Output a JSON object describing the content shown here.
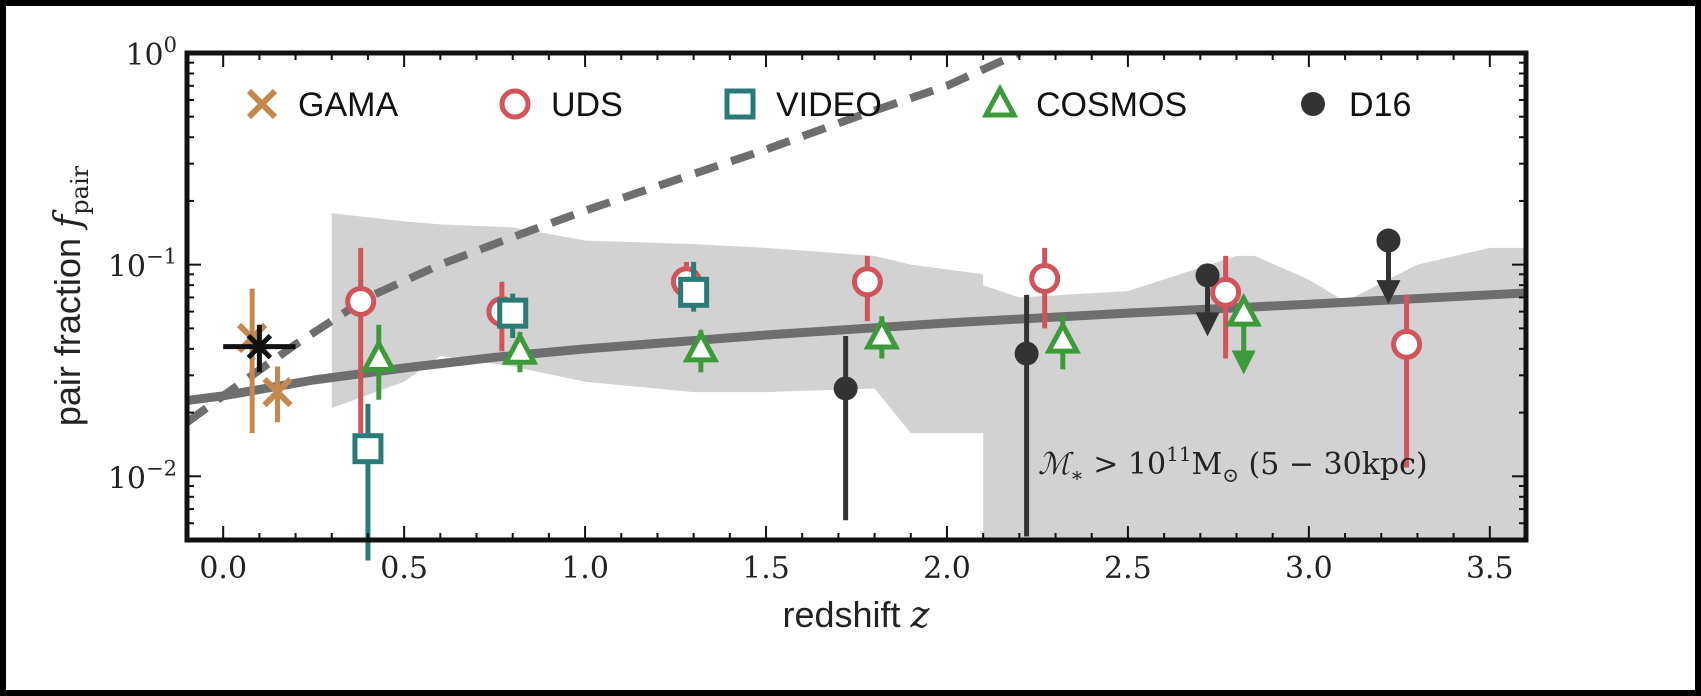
{
  "chart_data": {
    "type": "scatter",
    "title": "",
    "xlabel": "redshift",
    "xlabel_symbol": "z",
    "ylabel": "pair fraction",
    "ylabel_symbol": "f",
    "ylabel_subscript": "pair",
    "yscale": "log",
    "xlim": [
      -0.1,
      3.6
    ],
    "ylim": [
      0.005,
      1.0
    ],
    "grid": false,
    "legend_position": "top, single row",
    "x_ticks": [
      {
        "value": 0.0,
        "label": "0.0"
      },
      {
        "value": 0.5,
        "label": "0.5"
      },
      {
        "value": 1.0,
        "label": "1.0"
      },
      {
        "value": 1.5,
        "label": "1.5"
      },
      {
        "value": 2.0,
        "label": "2.0"
      },
      {
        "value": 2.5,
        "label": "2.5"
      },
      {
        "value": 3.0,
        "label": "3.0"
      },
      {
        "value": 3.5,
        "label": "3.5"
      }
    ],
    "y_ticks": [
      {
        "value": 1.0,
        "base": "10",
        "exp": "0"
      },
      {
        "value": 0.1,
        "base": "10",
        "exp": "−1"
      },
      {
        "value": 0.01,
        "base": "10",
        "exp": "−2"
      }
    ],
    "annotation": {
      "prefix": "ℳ",
      "sub": "∗",
      "middle": " > 10",
      "sup": "11",
      "unit": "M",
      "unit_sub": "⊙",
      "suffix": " (5 − 30kpc)"
    },
    "series": [
      {
        "name": "GAMA",
        "marker": "x",
        "color": "#c4884f",
        "points": [
          {
            "x": 0.08,
            "y": 0.045,
            "ylo": 0.016,
            "yhi": 0.077
          },
          {
            "x": 0.15,
            "y": 0.025,
            "ylo": 0.018,
            "yhi": 0.033
          }
        ]
      },
      {
        "name": "UDS",
        "marker": "circle-open",
        "color": "#d0545a",
        "points": [
          {
            "x": 0.38,
            "y": 0.067,
            "ylo": 0.016,
            "yhi": 0.12
          },
          {
            "x": 0.77,
            "y": 0.06,
            "ylo": 0.039,
            "yhi": 0.083
          },
          {
            "x": 1.28,
            "y": 0.083,
            "ylo": 0.066,
            "yhi": 0.103
          },
          {
            "x": 1.78,
            "y": 0.083,
            "ylo": 0.054,
            "yhi": 0.11
          },
          {
            "x": 2.27,
            "y": 0.086,
            "ylo": 0.05,
            "yhi": 0.12
          },
          {
            "x": 2.77,
            "y": 0.074,
            "ylo": 0.036,
            "yhi": 0.11
          },
          {
            "x": 3.27,
            "y": 0.042,
            "ylo": 0.011,
            "yhi": 0.072
          }
        ]
      },
      {
        "name": "VIDEO",
        "marker": "square-open",
        "color": "#2a7a78",
        "points": [
          {
            "x": 0.4,
            "y": 0.0135,
            "ylo": 0.004,
            "yhi": 0.022
          },
          {
            "x": 0.8,
            "y": 0.059,
            "ylo": 0.045,
            "yhi": 0.073
          },
          {
            "x": 1.3,
            "y": 0.074,
            "ylo": 0.06,
            "yhi": 0.103
          }
        ]
      },
      {
        "name": "COSMOS",
        "marker": "triangle-open",
        "color": "#3d9a3a",
        "points": [
          {
            "x": 0.43,
            "y": 0.036,
            "ylo": 0.023,
            "yhi": 0.052
          },
          {
            "x": 0.82,
            "y": 0.039,
            "ylo": 0.031,
            "yhi": 0.048
          },
          {
            "x": 1.32,
            "y": 0.04,
            "ylo": 0.031,
            "yhi": 0.049
          },
          {
            "x": 1.82,
            "y": 0.046,
            "ylo": 0.036,
            "yhi": 0.057
          },
          {
            "x": 2.32,
            "y": 0.044,
            "ylo": 0.032,
            "yhi": 0.057
          },
          {
            "x": 2.82,
            "y": 0.059,
            "upper_limit": true,
            "arrow_to": 0.033
          }
        ]
      },
      {
        "name": "D16",
        "marker": "circle-filled",
        "color": "#333333",
        "points": [
          {
            "x": 1.72,
            "y": 0.026,
            "ylo": 0.0062,
            "yhi": 0.046
          },
          {
            "x": 2.22,
            "y": 0.038,
            "ylo": 0.0052,
            "yhi": 0.072
          },
          {
            "x": 2.72,
            "y": 0.089,
            "upper_limit": true,
            "arrow_to": 0.05
          },
          {
            "x": 3.22,
            "y": 0.13,
            "upper_limit": true,
            "arrow_to": 0.071
          }
        ]
      }
    ],
    "lines": [
      {
        "style": "solid",
        "color": "#6e6e6e",
        "x": [
          -0.1,
          0.0,
          0.25,
          0.5,
          0.75,
          1.0,
          1.5,
          2.0,
          2.5,
          3.0,
          3.6
        ],
        "y": [
          0.0228,
          0.024,
          0.0285,
          0.0325,
          0.0365,
          0.04,
          0.0465,
          0.053,
          0.059,
          0.065,
          0.0735
        ]
      },
      {
        "style": "dashed",
        "color": "#6e6e6e",
        "x": [
          -0.1,
          0.0,
          0.2,
          0.4,
          0.6,
          0.8,
          1.0,
          1.2,
          1.5,
          1.75,
          2.0,
          2.2
        ],
        "y": [
          0.018,
          0.024,
          0.042,
          0.07,
          0.1,
          0.135,
          0.18,
          0.235,
          0.35,
          0.5,
          0.7,
          1.0
        ]
      }
    ],
    "bands": [
      {
        "color": "#d2d2d2",
        "x": [
          0.3,
          0.5,
          0.6,
          0.8,
          1.0,
          1.3,
          1.5,
          1.8,
          1.9,
          2.1,
          2.1,
          2.2,
          2.5,
          2.8,
          2.85,
          3.0,
          3.1,
          3.3,
          3.5,
          3.6
        ],
        "upper": [
          0.175,
          0.16,
          0.155,
          0.15,
          0.13,
          0.125,
          0.12,
          0.11,
          0.1,
          0.09,
          0.08,
          0.07,
          0.075,
          0.11,
          0.11,
          0.085,
          0.067,
          0.1,
          0.12,
          0.12
        ],
        "lower": [
          0.021,
          0.028,
          0.037,
          0.033,
          0.028,
          0.025,
          0.025,
          0.026,
          0.016,
          0.016,
          0.005,
          0.005,
          0.005,
          0.005,
          0.005,
          0.005,
          0.005,
          0.005,
          0.005,
          0.005
        ]
      }
    ]
  }
}
